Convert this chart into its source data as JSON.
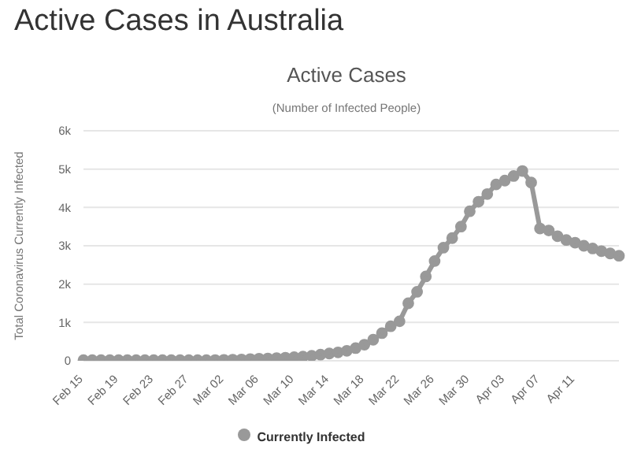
{
  "chart_data": {
    "type": "line",
    "title": "Active Cases",
    "subtitle": "(Number of Infected People)",
    "ylabel": "Total Coronavirus Currently Infected",
    "annotations": [
      "Active Cases in Australia"
    ],
    "categories": [
      "Feb 15",
      null,
      null,
      null,
      "Feb 19",
      null,
      null,
      null,
      "Feb 23",
      null,
      null,
      null,
      "Feb 27",
      null,
      null,
      null,
      "Mar 02",
      null,
      null,
      null,
      "Mar 06",
      null,
      null,
      null,
      "Mar 10",
      null,
      null,
      null,
      "Mar 14",
      null,
      null,
      null,
      "Mar 18",
      null,
      null,
      null,
      "Mar 22",
      null,
      null,
      null,
      "Mar 26",
      null,
      null,
      null,
      "Mar 30",
      null,
      null,
      null,
      "Apr 03",
      null,
      null,
      null,
      "Apr 07",
      null,
      null,
      null,
      "Apr 11",
      null,
      null,
      null,
      null,
      null
    ],
    "series": [
      {
        "name": "Currently Infected",
        "color": "#999999",
        "values": [
          15,
          15,
          15,
          15,
          15,
          15,
          15,
          15,
          15,
          15,
          15,
          15,
          15,
          15,
          15,
          20,
          25,
          30,
          35,
          45,
          55,
          60,
          70,
          80,
          95,
          110,
          130,
          160,
          190,
          220,
          260,
          330,
          420,
          550,
          720,
          900,
          1030,
          1500,
          1800,
          2200,
          2600,
          2950,
          3200,
          3500,
          3900,
          4150,
          4350,
          4600,
          4700,
          4820,
          4950,
          4650,
          3450,
          3400,
          3250,
          3150,
          3080,
          3000,
          2930,
          2860,
          2800,
          2740
        ]
      }
    ],
    "ylim": [
      0,
      6000
    ],
    "yticks": [
      {
        "value": 0,
        "label": "0"
      },
      {
        "value": 1000,
        "label": "1k"
      },
      {
        "value": 2000,
        "label": "2k"
      },
      {
        "value": 3000,
        "label": "3k"
      },
      {
        "value": 4000,
        "label": "4k"
      },
      {
        "value": 5000,
        "label": "5k"
      },
      {
        "value": 6000,
        "label": "6k"
      }
    ],
    "grid": "y",
    "legend": "bottom",
    "marker": "circle",
    "line_style": "solid"
  }
}
